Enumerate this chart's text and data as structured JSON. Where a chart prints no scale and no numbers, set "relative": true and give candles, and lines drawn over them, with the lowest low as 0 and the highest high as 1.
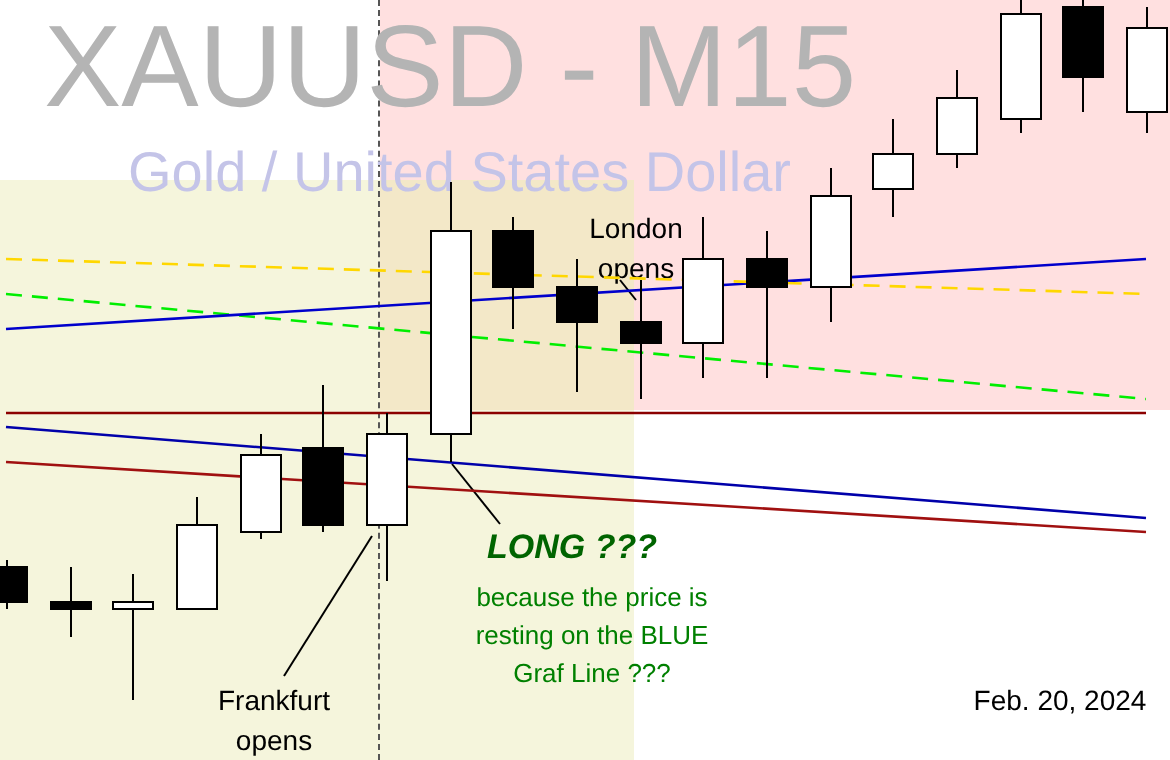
{
  "chart_data": {
    "type": "candlestick",
    "relative": true,
    "title": "XAUUSD - M15",
    "subtitle": "Gold / United States Dollar",
    "categories": [
      null,
      null,
      null,
      null,
      null,
      null,
      null,
      null,
      null,
      null,
      null,
      null,
      null,
      null,
      null,
      null,
      null,
      null,
      null
    ],
    "ohlc": [
      [
        0.19,
        0.2,
        0.13,
        0.14
      ],
      [
        0.14,
        0.19,
        0.09,
        0.13
      ],
      [
        0.13,
        0.18,
        0,
        0.14
      ],
      [
        0.13,
        0.29,
        0.13,
        0.25
      ],
      [
        0.24,
        0.38,
        0.23,
        0.35
      ],
      [
        0.36,
        0.45,
        0.24,
        0.25
      ],
      [
        0.25,
        0.41,
        0.17,
        0.38
      ],
      [
        0.38,
        0.74,
        0.34,
        0.67
      ],
      [
        0.67,
        0.69,
        0.53,
        0.59
      ],
      [
        0.59,
        0.63,
        0.44,
        0.54
      ],
      [
        0.54,
        0.6,
        0.43,
        0.51
      ],
      [
        0.51,
        0.69,
        0.46,
        0.63
      ],
      [
        0.63,
        0.67,
        0.46,
        0.59
      ],
      [
        0.59,
        0.76,
        0.54,
        0.72
      ],
      [
        0.73,
        0.83,
        0.69,
        0.78
      ],
      [
        0.78,
        0.9,
        0.76,
        0.86
      ],
      [
        0.83,
        1,
        0.81,
        0.98
      ],
      [
        0.99,
        1,
        0.84,
        0.89
      ],
      [
        0.84,
        0.99,
        0.81,
        0.96
      ]
    ],
    "series": [
      {
        "type": "line",
        "color": "#ffd700",
        "line_style": "dashed",
        "values": [
          0.63,
          null,
          null,
          null,
          null,
          null,
          null,
          null,
          null,
          null,
          null,
          null,
          null,
          null,
          null,
          null,
          null,
          null,
          0.58
        ]
      },
      {
        "type": "line",
        "color": "#0000cc",
        "values": [
          0.53,
          null,
          null,
          null,
          null,
          null,
          null,
          null,
          null,
          null,
          null,
          null,
          null,
          null,
          null,
          null,
          null,
          null,
          0.63
        ]
      },
      {
        "type": "line",
        "color": "#00ee00",
        "line_style": "dashed",
        "values": [
          0.58,
          null,
          null,
          null,
          null,
          null,
          null,
          null,
          null,
          null,
          null,
          null,
          null,
          null,
          null,
          null,
          null,
          null,
          0.43
        ]
      },
      {
        "type": "line",
        "color": "#8b0000",
        "values": [
          0.41,
          null,
          null,
          null,
          null,
          null,
          null,
          null,
          null,
          null,
          null,
          null,
          null,
          null,
          null,
          null,
          null,
          null,
          0.41
        ]
      },
      {
        "type": "line",
        "color": "#a01010",
        "values": [
          0.34,
          null,
          null,
          null,
          null,
          null,
          null,
          null,
          null,
          null,
          null,
          null,
          null,
          null,
          null,
          null,
          null,
          null,
          0.24
        ]
      },
      {
        "type": "line",
        "color": "#0000aa",
        "values": [
          0.39,
          null,
          null,
          null,
          null,
          null,
          null,
          null,
          null,
          null,
          null,
          null,
          null,
          null,
          null,
          null,
          null,
          null,
          0.26
        ]
      }
    ],
    "annotations": [
      "London opens",
      "Frankfurt opens",
      "LONG ???",
      "because the price is resting on the BLUE  Graf Line ???",
      "Feb. 20, 2024"
    ],
    "tick_labels": false,
    "legend": false
  }
}
